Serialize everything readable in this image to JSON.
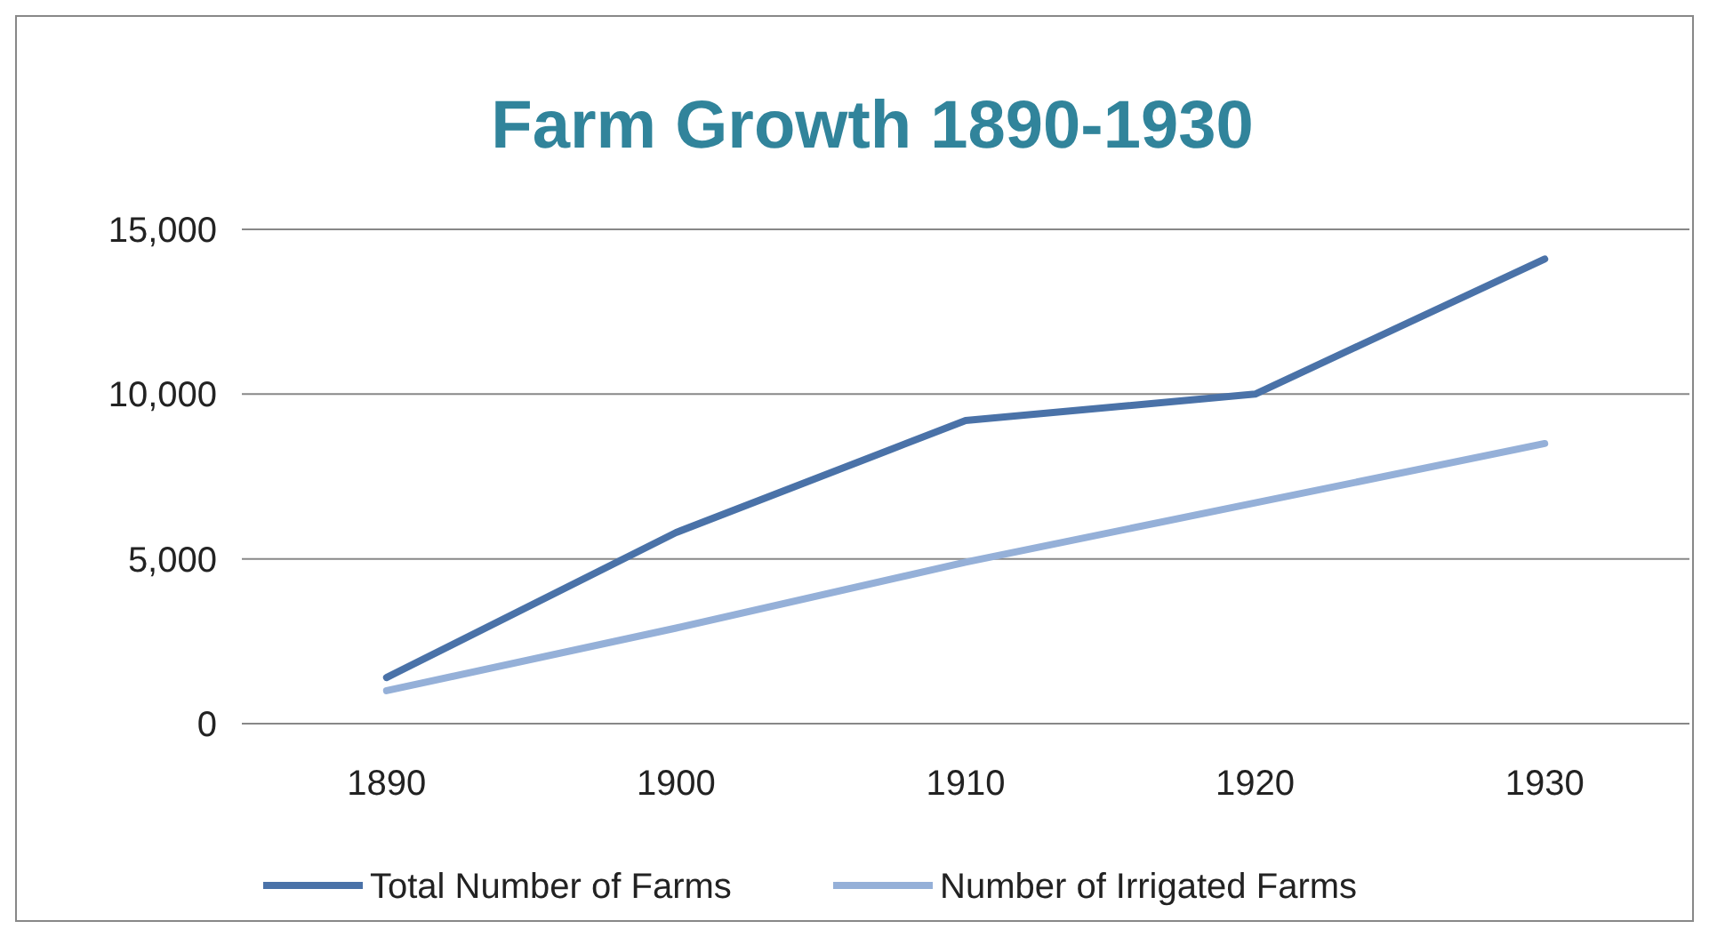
{
  "chart_data": {
    "type": "line",
    "title": "Farm Growth 1890-1930",
    "categories": [
      "1890",
      "1900",
      "1910",
      "1920",
      "1930"
    ],
    "series": [
      {
        "name": "Total Number of Farms",
        "color": "#4a72a8",
        "values": [
          1400,
          5800,
          9200,
          10000,
          14100
        ]
      },
      {
        "name": "Number of Irrigated Farms",
        "color": "#95b0d8",
        "values": [
          1000,
          2900,
          4900,
          6700,
          8500
        ]
      }
    ],
    "ylim": [
      0,
      15000
    ],
    "yticks": [
      {
        "value": 0,
        "label": "0"
      },
      {
        "value": 5000,
        "label": "5,000"
      },
      {
        "value": 10000,
        "label": "10,000"
      },
      {
        "value": 15000,
        "label": "15,000"
      }
    ],
    "grid": "y",
    "legend": "bottom",
    "marker": "none",
    "line_style": "solid"
  }
}
